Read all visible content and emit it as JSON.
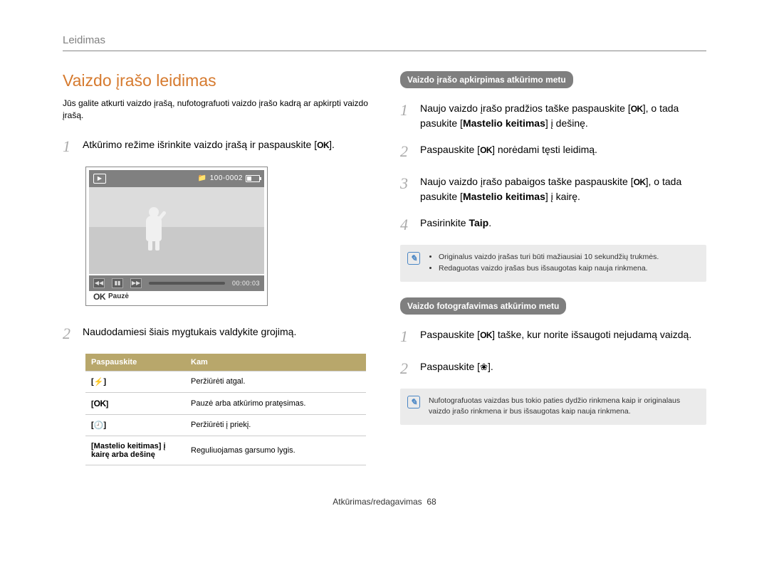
{
  "page_header": "Leidimas",
  "left": {
    "title": "Vaizdo įrašo leidimas",
    "intro": "Jūs galite atkurti vaizdo įrašą, nufotografuoti vaizdo įrašo kadrą ar apkirpti vaizdo įrašą.",
    "step1_pre": "Atkūrimo režime išrinkite vaizdo įrašą ir paspauskite [",
    "step1_ok": "OK",
    "step1_post": "].",
    "step2": "Naudodamiesi šiais mygtukais valdykite grojimą.",
    "screenshot": {
      "counter": "100-0002",
      "time": "00:00:03",
      "ok": "OK",
      "pause": "Pauzė"
    },
    "table": {
      "h1": "Paspauskite",
      "h2": "Kam",
      "rows": [
        {
          "k": "[flash]",
          "k_glyph": "⚡",
          "v": "Peržiūrėti atgal."
        },
        {
          "k": "[OK]",
          "k_text": "OK",
          "v": "Pauzė arba atkūrimo pratęsimas."
        },
        {
          "k": "[timer]",
          "k_glyph": "🕘",
          "v": "Peržiūrėti į priekį."
        },
        {
          "k": "",
          "k_text": "[Mastelio keitimas] į kairę arba dešinę",
          "v": "Reguliuojamas garsumo lygis."
        }
      ]
    }
  },
  "right": {
    "section1": {
      "title": "Vaizdo įrašo apkirpimas atkūrimo metu",
      "s1a": "Naujo vaizdo įrašo pradžios taške paspauskite [",
      "s1ok": "OK",
      "s1b": "], o tada pasukite [",
      "s1bold": "Mastelio keitimas",
      "s1c": "] į dešinę.",
      "s2a": "Paspauskite [",
      "s2ok": "OK",
      "s2b": "] norėdami tęsti leidimą.",
      "s3a": "Naujo vaizdo įrašo pabaigos taške paspauskite [",
      "s3ok": "OK",
      "s3b": "], o tada pasukite [",
      "s3bold": "Mastelio keitimas",
      "s3c": "] į kairę.",
      "s4a": "Pasirinkite ",
      "s4bold": "Taip",
      "s4c": ".",
      "note1": "Originalus vaizdo įrašas turi būti mažiausiai 10 sekundžių trukmės.",
      "note2": "Redaguotas vaizdo įrašas bus išsaugotas kaip nauja rinkmena."
    },
    "section2": {
      "title": "Vaizdo fotografavimas atkūrimo metu",
      "s1a": "Paspauskite [",
      "s1ok": "OK",
      "s1b": "] taške, kur norite išsaugoti nejudamą vaizdą.",
      "s2a": "Paspauskite [",
      "s2_icon": "❀",
      "s2b": "].",
      "note": "Nufotografuotas vaizdas bus tokio paties dydžio rinkmena kaip ir originalaus vaizdo įrašo rinkmena ir bus išsaugotas kaip nauja rinkmena."
    }
  },
  "footer_label": "Atkūrimas/redagavimas",
  "footer_page": "68"
}
